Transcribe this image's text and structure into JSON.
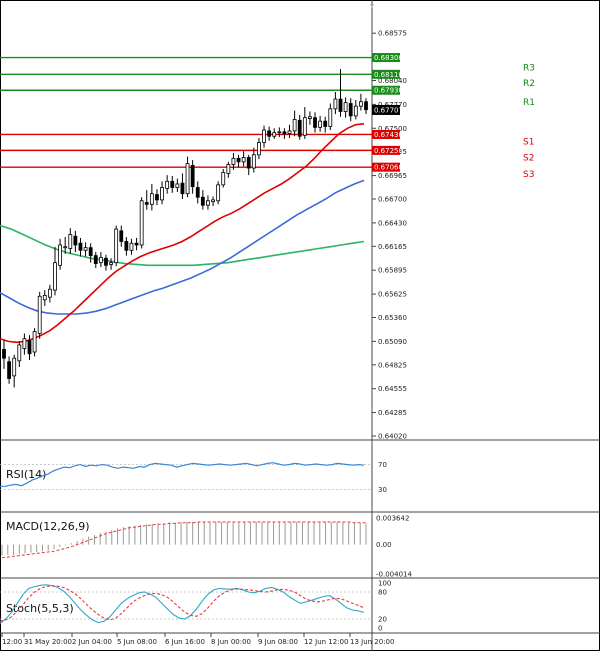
{
  "chart_data": {
    "type": "candlestick",
    "title": "",
    "price_axis": {
      "ylim": [
        0.6402,
        0.6886
      ],
      "ticks": [
        "0.68575",
        "0.68040",
        "0.67770",
        "0.67500",
        "0.67235",
        "0.66965",
        "0.66700",
        "0.66430",
        "0.66165",
        "0.65895",
        "0.65625",
        "0.65360",
        "0.65090",
        "0.64825",
        "0.64555",
        "0.64285",
        "0.64020"
      ],
      "current_price": "0.67707",
      "current_value": 0.67707
    },
    "time_labels": [
      "12:00",
      "31 May 20:00",
      "2 Jun 04:00",
      "5 Jun 08:00",
      "6 Jun 16:00",
      "8 Jun 00:00",
      "9 Jun 08:00",
      "12 Jun 12:00",
      "13 Jun 20:00"
    ],
    "levels": [
      {
        "name": "",
        "label": "0.68300",
        "value": 0.683,
        "role": "resistance"
      },
      {
        "name": "R3",
        "label": "0.68110",
        "value": 0.6811,
        "role": "resistance"
      },
      {
        "name": "R2",
        "label": "0.67930",
        "value": 0.6793,
        "role": "resistance"
      },
      {
        "name": "R1",
        "label": "",
        "value": 0.6772,
        "role": "text-only"
      },
      {
        "name": "S1",
        "label": "0.67430",
        "value": 0.6743,
        "role": "support"
      },
      {
        "name": "S2",
        "label": "0.67250",
        "value": 0.6725,
        "role": "support"
      },
      {
        "name": "S3",
        "label": "0.67060",
        "value": 0.6706,
        "role": "support"
      }
    ],
    "candles": [
      [
        0.65,
        0.649,
        0.651,
        0.6478
      ],
      [
        0.6486,
        0.6467,
        0.6492,
        0.6461
      ],
      [
        0.647,
        0.649,
        0.6494,
        0.6457
      ],
      [
        0.6487,
        0.6505,
        0.6509,
        0.648
      ],
      [
        0.6501,
        0.6512,
        0.6518,
        0.6494
      ],
      [
        0.651,
        0.6495,
        0.6516,
        0.6488
      ],
      [
        0.6497,
        0.652,
        0.6524,
        0.6492
      ],
      [
        0.6518,
        0.656,
        0.6565,
        0.6512
      ],
      [
        0.6556,
        0.6561,
        0.6567,
        0.6549
      ],
      [
        0.6559,
        0.6568,
        0.6573,
        0.6553
      ],
      [
        0.6567,
        0.6598,
        0.6616,
        0.6561
      ],
      [
        0.6595,
        0.6618,
        0.6625,
        0.659
      ],
      [
        0.6615,
        0.6616,
        0.6627,
        0.6608
      ],
      [
        0.6614,
        0.663,
        0.6637,
        0.6608
      ],
      [
        0.6628,
        0.6618,
        0.6634,
        0.661
      ],
      [
        0.662,
        0.6612,
        0.6626,
        0.6605
      ],
      [
        0.6612,
        0.6615,
        0.6621,
        0.6605
      ],
      [
        0.6615,
        0.6606,
        0.662,
        0.6598
      ],
      [
        0.6606,
        0.6597,
        0.661,
        0.6592
      ],
      [
        0.6598,
        0.6604,
        0.661,
        0.6593
      ],
      [
        0.6603,
        0.6595,
        0.6607,
        0.6589
      ],
      [
        0.6596,
        0.6598,
        0.6603,
        0.659
      ],
      [
        0.6598,
        0.6636,
        0.664,
        0.6594
      ],
      [
        0.6634,
        0.6622,
        0.664,
        0.6616
      ],
      [
        0.6622,
        0.6612,
        0.6627,
        0.6606
      ],
      [
        0.6612,
        0.662,
        0.6625,
        0.6607
      ],
      [
        0.662,
        0.6618,
        0.6626,
        0.6612
      ],
      [
        0.6618,
        0.6668,
        0.6672,
        0.6614
      ],
      [
        0.6666,
        0.6664,
        0.668,
        0.6658
      ],
      [
        0.6664,
        0.6676,
        0.6687,
        0.6657
      ],
      [
        0.6675,
        0.6669,
        0.6681,
        0.6663
      ],
      [
        0.6669,
        0.6683,
        0.669,
        0.6664
      ],
      [
        0.6682,
        0.669,
        0.6697,
        0.6676
      ],
      [
        0.669,
        0.6683,
        0.6696,
        0.6677
      ],
      [
        0.6683,
        0.6687,
        0.6693,
        0.6678
      ],
      [
        0.6688,
        0.6676,
        0.6699,
        0.667
      ],
      [
        0.6676,
        0.671,
        0.6718,
        0.6672
      ],
      [
        0.6708,
        0.6684,
        0.6714,
        0.6676
      ],
      [
        0.6683,
        0.6672,
        0.669,
        0.6665
      ],
      [
        0.6672,
        0.6663,
        0.668,
        0.6658
      ],
      [
        0.6663,
        0.6668,
        0.6674,
        0.6658
      ],
      [
        0.6667,
        0.6669,
        0.6673,
        0.6662
      ],
      [
        0.6668,
        0.6686,
        0.669,
        0.6664
      ],
      [
        0.6686,
        0.67,
        0.6704,
        0.6683
      ],
      [
        0.6699,
        0.6709,
        0.6712,
        0.6694
      ],
      [
        0.6709,
        0.6716,
        0.6722,
        0.6703
      ],
      [
        0.6716,
        0.6712,
        0.672,
        0.6706
      ],
      [
        0.6712,
        0.6717,
        0.6724,
        0.6707
      ],
      [
        0.6717,
        0.6705,
        0.672,
        0.6697
      ],
      [
        0.6705,
        0.672,
        0.6728,
        0.67
      ],
      [
        0.672,
        0.6734,
        0.6739,
        0.6715
      ],
      [
        0.6734,
        0.6748,
        0.6753,
        0.6728
      ],
      [
        0.6747,
        0.6741,
        0.6752,
        0.6736
      ],
      [
        0.6741,
        0.6745,
        0.675,
        0.6738
      ],
      [
        0.6745,
        0.6746,
        0.6751,
        0.674
      ],
      [
        0.6746,
        0.6744,
        0.675,
        0.6738
      ],
      [
        0.6744,
        0.6747,
        0.6754,
        0.6739
      ],
      [
        0.6747,
        0.676,
        0.677,
        0.6741
      ],
      [
        0.6759,
        0.6741,
        0.6765,
        0.6737
      ],
      [
        0.6742,
        0.6762,
        0.6774,
        0.6738
      ],
      [
        0.6761,
        0.6763,
        0.6769,
        0.6754
      ],
      [
        0.6762,
        0.6751,
        0.6768,
        0.6745
      ],
      [
        0.6751,
        0.6758,
        0.6764,
        0.6746
      ],
      [
        0.6758,
        0.6752,
        0.6763,
        0.6745
      ],
      [
        0.6752,
        0.6772,
        0.6778,
        0.6748
      ],
      [
        0.6772,
        0.6783,
        0.6791,
        0.6766
      ],
      [
        0.6783,
        0.6769,
        0.6817,
        0.6763
      ],
      [
        0.6769,
        0.6779,
        0.6785,
        0.6762
      ],
      [
        0.6778,
        0.6764,
        0.6784,
        0.6758
      ],
      [
        0.6764,
        0.6775,
        0.6782,
        0.676
      ],
      [
        0.6775,
        0.678,
        0.6789,
        0.677
      ],
      [
        0.678,
        0.6771,
        0.6784,
        0.6766
      ]
    ],
    "ma_red": [
      0.6512,
      0.6509,
      0.6508,
      0.6509,
      0.6512,
      0.6516,
      0.6521,
      0.6528,
      0.6536,
      0.6544,
      0.6553,
      0.6562,
      0.6571,
      0.658,
      0.6588,
      0.6594,
      0.66,
      0.6605,
      0.6609,
      0.6612,
      0.6615,
      0.6618,
      0.6622,
      0.6627,
      0.6633,
      0.6639,
      0.6645,
      0.665,
      0.6654,
      0.6659,
      0.6665,
      0.6671,
      0.6677,
      0.6682,
      0.6687,
      0.6693,
      0.67,
      0.6707,
      0.6716,
      0.6726,
      0.6735,
      0.6744,
      0.675,
      0.6754,
      0.6755
    ],
    "ma_blue": [
      0.6564,
      0.6558,
      0.6552,
      0.6547,
      0.6543,
      0.6541,
      0.654,
      0.654,
      0.654,
      0.6541,
      0.6543,
      0.6546,
      0.655,
      0.6554,
      0.6558,
      0.6562,
      0.6566,
      0.6569,
      0.6573,
      0.6577,
      0.6581,
      0.6586,
      0.6591,
      0.6597,
      0.6603,
      0.661,
      0.6617,
      0.6624,
      0.6631,
      0.6638,
      0.6645,
      0.6652,
      0.6658,
      0.6664,
      0.667,
      0.6677,
      0.6682,
      0.6687,
      0.6691
    ],
    "ma_green": [
      0.664,
      0.6636,
      0.663,
      0.6624,
      0.6618,
      0.6613,
      0.6609,
      0.6606,
      0.6603,
      0.6601,
      0.6599,
      0.6597,
      0.6596,
      0.6595,
      0.6595,
      0.6595,
      0.6595,
      0.6595,
      0.6596,
      0.6597,
      0.6598,
      0.66,
      0.6602,
      0.6604,
      0.6606,
      0.6608,
      0.661,
      0.6612,
      0.6614,
      0.6616,
      0.6618,
      0.662,
      0.6622
    ],
    "rsi": {
      "label": "RSI(14)",
      "levels": [
        "70",
        "30"
      ],
      "ylim": [
        0,
        100
      ],
      "values": [
        35,
        35,
        37,
        38,
        36,
        40,
        45,
        48,
        52,
        55,
        60,
        63,
        66,
        65,
        68,
        70,
        67,
        69,
        68,
        70,
        69,
        66,
        64,
        66,
        65,
        64,
        67,
        66,
        70,
        72,
        71,
        70,
        69,
        66,
        68,
        70,
        72,
        71,
        70,
        69,
        70,
        71,
        70,
        69,
        70,
        71,
        72,
        70,
        68,
        70,
        72,
        73,
        71,
        69,
        70,
        72,
        71,
        69,
        70,
        71,
        70,
        69,
        70,
        72,
        71,
        70,
        69,
        70,
        69
      ]
    },
    "macd": {
      "label": "MACD(12,26,9)",
      "ticks": [
        "0.003642",
        "0.00",
        "-0.004014"
      ],
      "ylim": [
        -0.004014,
        0.003642
      ],
      "histogram": [
        -0.0015,
        -0.0014,
        -0.0014,
        -0.0013,
        -0.0012,
        -0.0011,
        -0.001,
        -0.0009,
        -0.0008,
        -0.0006,
        -0.0003,
        -0.0001,
        0.0002,
        0.0005,
        0.0008,
        0.0011,
        0.0013,
        0.0016,
        0.0018,
        0.002,
        0.0022,
        0.0024,
        0.0025,
        0.0026,
        0.0027,
        0.0028,
        0.0028,
        0.0029,
        0.0029,
        0.003,
        0.003,
        0.003,
        0.0031,
        0.0031,
        0.0031,
        0.0031,
        0.0031,
        0.0031,
        0.0031,
        0.0031,
        0.0031,
        0.0031,
        0.0031,
        0.0031,
        0.0031,
        0.0031,
        0.0031,
        0.0031,
        0.0031,
        0.0031,
        0.0031,
        0.0031,
        0.0031,
        0.0031,
        0.0031,
        0.0031,
        0.0031,
        0.0031,
        0.0031,
        0.0031,
        0.003,
        0.003,
        0.003,
        0.0029
      ],
      "signal": [
        -0.0018,
        -0.0017,
        -0.0016,
        -0.0015,
        -0.0014,
        -0.0013,
        -0.0012,
        -0.0011,
        -0.001,
        -0.0009,
        -0.0007,
        -0.0005,
        -0.0003,
        0.0,
        0.0003,
        0.0006,
        0.0009,
        0.0012,
        0.0015,
        0.0017,
        0.0019,
        0.0021,
        0.0023,
        0.0024,
        0.0025,
        0.0026,
        0.0027,
        0.0028,
        0.0028,
        0.0029,
        0.0029,
        0.003,
        0.003,
        0.003,
        0.0031,
        0.0031,
        0.0031,
        0.0031,
        0.0031,
        0.0031,
        0.0031,
        0.0031,
        0.0031,
        0.0031,
        0.0031,
        0.0031,
        0.0031,
        0.0031,
        0.0031,
        0.0031,
        0.0031,
        0.0031,
        0.0031,
        0.0031,
        0.0031,
        0.0031,
        0.0031,
        0.0031,
        0.0031,
        0.0031,
        0.0031,
        0.003,
        0.003,
        0.003
      ]
    },
    "stoch": {
      "label": "Stoch(5,5,3)",
      "ticks": [
        "100",
        "80",
        "20",
        "0"
      ],
      "ylim": [
        0,
        100
      ],
      "k": [
        10,
        20,
        35,
        55,
        75,
        88,
        92,
        95,
        96,
        94,
        90,
        82,
        70,
        55,
        40,
        28,
        18,
        12,
        15,
        25,
        40,
        55,
        65,
        72,
        78,
        80,
        75,
        68,
        55,
        42,
        30,
        22,
        20,
        28,
        42,
        60,
        75,
        85,
        88,
        87,
        86,
        88,
        85,
        80,
        78,
        82,
        88,
        90,
        86,
        80,
        70,
        62,
        55,
        58,
        62,
        66,
        70,
        72,
        65,
        55,
        45,
        40,
        38,
        35
      ],
      "d": [
        15,
        18,
        25,
        38,
        52,
        68,
        80,
        88,
        92,
        94,
        93,
        90,
        84,
        76,
        65,
        52,
        40,
        30,
        22,
        18,
        22,
        32,
        45,
        58,
        66,
        72,
        76,
        77,
        74,
        68,
        58,
        46,
        35,
        28,
        26,
        32,
        45,
        60,
        72,
        80,
        85,
        87,
        86,
        85,
        83,
        81,
        80,
        82,
        85,
        86,
        84,
        80,
        72,
        64,
        60,
        58,
        60,
        63,
        66,
        65,
        60,
        55,
        50,
        45
      ]
    }
  },
  "colors": {
    "up": "#ffffff",
    "down": "#000000",
    "ma_red": "#e00000",
    "ma_blue": "#3c6ad8",
    "ma_green": "#2db366",
    "resistance": "#1a8a1a",
    "support": "#dd0000",
    "rsi": "#3a86d6",
    "macd_signal": "#e23b3b",
    "stoch_k": "#2fa8c8",
    "stoch_d": "#e23b3b"
  }
}
